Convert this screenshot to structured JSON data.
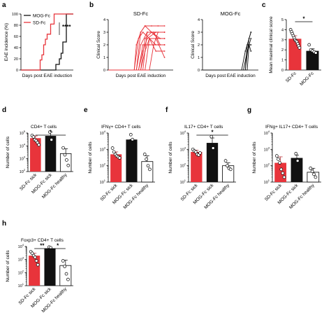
{
  "panel_letters": [
    "a",
    "b",
    "c",
    "d",
    "e",
    "f",
    "g",
    "h"
  ],
  "colors": {
    "sd": "#e8343b",
    "mog": "#111111",
    "healthy": "#ffffff",
    "grid": "#000000"
  },
  "chart_data": [
    {
      "id": "a",
      "type": "line",
      "xlabel": "Days post EAE induction",
      "ylabel": "EAE incidence (%)",
      "xlim": [
        0,
        30
      ],
      "ylim": [
        0,
        100
      ],
      "yticks": [
        0,
        20,
        40,
        60,
        80,
        100
      ],
      "legend_position": "top-left",
      "significance": "****",
      "series": [
        {
          "name": "MOG-Fc",
          "color": "#111111",
          "x": [
            0,
            20,
            20,
            22,
            22,
            23,
            23,
            24,
            24,
            26,
            26,
            30
          ],
          "y": [
            0,
            0,
            10,
            10,
            20,
            20,
            30,
            30,
            50,
            50,
            100,
            100
          ]
        },
        {
          "name": "SD-Fc",
          "color": "#e8343b",
          "x": [
            0,
            11,
            11,
            12,
            12,
            13,
            13,
            14,
            14,
            15,
            15,
            17,
            17,
            19,
            19,
            30
          ],
          "y": [
            0,
            0,
            18,
            18,
            27,
            27,
            45,
            45,
            55,
            55,
            64,
            64,
            82,
            82,
            100,
            100
          ]
        }
      ]
    },
    {
      "id": "b1",
      "type": "line",
      "title": "SD-Fc",
      "xlabel": "Days post EAE induction",
      "ylabel": "Clinical Score",
      "xlim": [
        0,
        30
      ],
      "ylim": [
        0,
        4
      ],
      "yticks": [
        0,
        1,
        2,
        3,
        4
      ],
      "series": [
        {
          "color": "#e8343b",
          "x": [
            0,
            12,
            13,
            15,
            17,
            20,
            23,
            26
          ],
          "y": [
            0,
            0,
            2,
            3,
            3.5,
            3.5,
            3.5,
            3.5
          ]
        },
        {
          "color": "#e8343b",
          "x": [
            0,
            12,
            14,
            16,
            19,
            22,
            26
          ],
          "y": [
            0,
            0,
            2.5,
            3,
            2.5,
            2,
            2
          ]
        },
        {
          "color": "#e8343b",
          "x": [
            0,
            13,
            15,
            17,
            20,
            24,
            26
          ],
          "y": [
            0,
            0,
            3,
            3.5,
            3,
            2.5,
            2.5
          ]
        },
        {
          "color": "#e8343b",
          "x": [
            0,
            13,
            15,
            18,
            21,
            26
          ],
          "y": [
            0,
            0,
            2,
            3,
            3,
            3
          ]
        },
        {
          "color": "#e8343b",
          "x": [
            0,
            14,
            16,
            18,
            22,
            26
          ],
          "y": [
            0,
            0,
            1.5,
            2.5,
            3,
            3
          ]
        },
        {
          "color": "#e8343b",
          "x": [
            0,
            14,
            16,
            19,
            23,
            26
          ],
          "y": [
            0,
            0,
            2,
            2,
            2,
            2
          ]
        },
        {
          "color": "#e8343b",
          "x": [
            0,
            15,
            17,
            20,
            23,
            26
          ],
          "y": [
            0,
            0,
            2.5,
            3,
            2.5,
            2.5
          ]
        },
        {
          "color": "#e8343b",
          "x": [
            0,
            15,
            17,
            19,
            22,
            26
          ],
          "y": [
            0,
            0,
            1.5,
            2.5,
            1.5,
            1.5
          ]
        },
        {
          "color": "#e8343b",
          "x": [
            0,
            16,
            18,
            21,
            24,
            26
          ],
          "y": [
            0,
            0,
            3,
            3,
            2,
            2
          ]
        },
        {
          "color": "#e8343b",
          "x": [
            0,
            17,
            19,
            22,
            26
          ],
          "y": [
            0,
            0,
            2.5,
            2.5,
            1
          ]
        },
        {
          "color": "#e8343b",
          "x": [
            0,
            19,
            21,
            23,
            26
          ],
          "y": [
            0,
            0,
            2,
            3,
            3
          ]
        }
      ]
    },
    {
      "id": "b2",
      "type": "line",
      "title": "MOG-Fc",
      "xlabel": "Days post EAE induction",
      "ylabel": "Clinical Score",
      "xlim": [
        0,
        30
      ],
      "ylim": [
        0,
        4
      ],
      "yticks": [
        0,
        1,
        2,
        3,
        4
      ],
      "series": [
        {
          "color": "#111111",
          "x": [
            0,
            21,
            23,
            25,
            26
          ],
          "y": [
            0,
            0,
            1.5,
            2.5,
            3
          ]
        },
        {
          "color": "#111111",
          "x": [
            0,
            22,
            24,
            25,
            26
          ],
          "y": [
            0,
            0,
            1.5,
            2,
            2.5
          ]
        },
        {
          "color": "#111111",
          "x": [
            0,
            23,
            24,
            26
          ],
          "y": [
            0,
            0,
            2,
            2
          ]
        },
        {
          "color": "#111111",
          "x": [
            0,
            23,
            25,
            26
          ],
          "y": [
            0,
            0,
            2.5,
            3
          ]
        },
        {
          "color": "#111111",
          "x": [
            0,
            24,
            25,
            26
          ],
          "y": [
            0,
            0,
            2,
            1.5
          ]
        }
      ]
    },
    {
      "id": "c",
      "type": "bar",
      "ylabel": "Mean maximal clinical score",
      "ylim": [
        0,
        5
      ],
      "yticks": [
        0,
        1,
        2,
        3,
        4,
        5
      ],
      "log": false,
      "categories": [
        "SD-Fc",
        "MOG-Fc"
      ],
      "values": [
        3.1,
        1.9
      ],
      "errors": [
        0.3,
        0.2
      ],
      "points": [
        [
          4.0,
          3.8,
          3.6,
          3.4,
          3.2,
          3.0,
          2.9,
          2.8,
          2.6,
          2.4,
          2.2
        ],
        [
          2.5,
          2.0,
          1.9,
          1.8,
          1.7
        ]
      ],
      "colors": [
        "#e8343b",
        "#111111"
      ],
      "significance": [
        {
          "from": 0,
          "to": 1,
          "label": "*"
        }
      ]
    },
    {
      "id": "d",
      "type": "bar",
      "title": "CD4+ T cells",
      "ylabel": "Number of cells",
      "log": true,
      "ylim": [
        100,
        100000
      ],
      "ytick_exp": [
        2,
        3,
        4,
        5
      ],
      "categories": [
        "SD-Fc sick",
        "MOG-Fc sick",
        "MOG-Fc healthy"
      ],
      "values": [
        40000,
        60000,
        2500
      ],
      "errors_up": [
        60000,
        120000,
        6000
      ],
      "points": [
        [
          65000,
          50000,
          30000,
          25000,
          18000,
          12000
        ],
        [
          120000,
          30000
        ],
        [
          7000,
          2000,
          800,
          300
        ]
      ],
      "colors": [
        "#e8343b",
        "#111111",
        "#ffffff"
      ],
      "significance": [
        {
          "from": 0,
          "to": 2,
          "label": "*"
        }
      ]
    },
    {
      "id": "e",
      "type": "bar",
      "title": "IFNγ+ CD4+ T cells",
      "ylabel": "Number of cells",
      "log": true,
      "ylim": [
        10,
        10000
      ],
      "ytick_exp": [
        1,
        2,
        3,
        4
      ],
      "categories": [
        "SD-Fc sick",
        "MOG-Fc sick",
        "MOG-Fc healthy"
      ],
      "values": [
        500,
        4000,
        180
      ],
      "errors_up": [
        700,
        4000,
        400
      ],
      "points": [
        [
          1200,
          700,
          500,
          400,
          350,
          300
        ],
        [
          8000,
          4000
        ],
        [
          500,
          250,
          100,
          60
        ]
      ],
      "colors": [
        "#e8343b",
        "#111111",
        "#ffffff"
      ],
      "significance": []
    },
    {
      "id": "f",
      "type": "bar",
      "title": "IL17+ CD4+ T cells",
      "ylabel": "Number of cells",
      "log": true,
      "ylim": [
        10,
        10000
      ],
      "ytick_exp": [
        1,
        2,
        3,
        4
      ],
      "categories": [
        "SD-Fc sick",
        "MOG-Fc sick",
        "MOG-Fc healthy"
      ],
      "values": [
        700,
        2500,
        100
      ],
      "errors_up": [
        900,
        5000,
        150
      ],
      "points": [
        [
          1000,
          800,
          700,
          500,
          450,
          600
        ],
        [
          6000,
          1200
        ],
        [
          200,
          100,
          70,
          60
        ]
      ],
      "colors": [
        "#e8343b",
        "#111111",
        "#ffffff"
      ],
      "significance": [
        {
          "from": 0,
          "to": 2,
          "label": "*"
        }
      ]
    },
    {
      "id": "g",
      "type": "bar",
      "title": "IFNg+ IL17+ CD4+ T cells",
      "ylabel": "Number of cells",
      "log": true,
      "ylim": [
        10,
        10000
      ],
      "ytick_exp": [
        1,
        2,
        3,
        4
      ],
      "categories": [
        "SD-Fc sick",
        "MOG-Fc sick",
        "MOG-Fc healthy"
      ],
      "values": [
        150,
        300,
        40
      ],
      "errors_up": [
        350,
        450,
        70
      ],
      "points": [
        [
          400,
          250,
          150,
          60,
          35,
          20
        ],
        [
          550,
          200
        ],
        [
          70,
          45,
          30,
          20
        ]
      ],
      "colors": [
        "#e8343b",
        "#111111",
        "#ffffff"
      ],
      "significance": []
    },
    {
      "id": "h",
      "type": "bar",
      "title": "Foxp3+ CD4+ T cells",
      "ylabel": "Number of cells",
      "log": true,
      "ylim": [
        10,
        10000
      ],
      "ytick_exp": [
        1,
        2,
        3,
        4
      ],
      "categories": [
        "SD-Fc sick",
        "MOG-Fc sick",
        "MOG-Fc healthy"
      ],
      "values": [
        2000,
        7000,
        350
      ],
      "errors_up": [
        3000,
        9000,
        900
      ],
      "points": [
        [
          4000,
          3000,
          2000,
          1500,
          800,
          400
        ],
        [
          9000,
          8000
        ],
        [
          800,
          300,
          80,
          30
        ]
      ],
      "colors": [
        "#e8343b",
        "#111111",
        "#ffffff"
      ],
      "significance": [
        {
          "from": 0,
          "to": 1,
          "label": "**"
        },
        {
          "from": 1,
          "to": 2,
          "label": "*"
        }
      ]
    }
  ]
}
